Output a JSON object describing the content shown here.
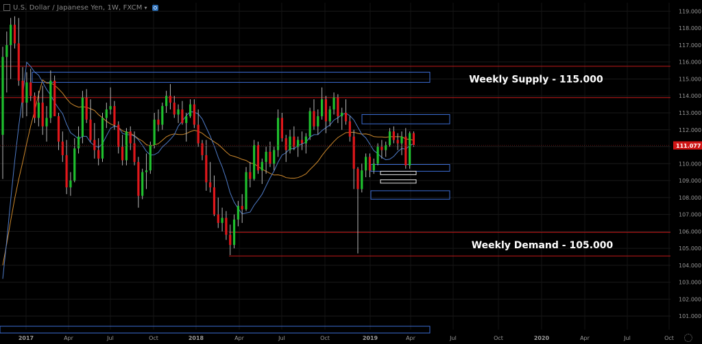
{
  "header": {
    "title": "U.S. Dollar / Japanese Yen, 1W, FXCM"
  },
  "chart_data": {
    "type": "candlestick",
    "symbol": "USDJPY",
    "timeframe": "1W",
    "ylim": [
      100.2,
      119.5
    ],
    "y_ticks": [
      "119.000",
      "118.000",
      "117.000",
      "116.000",
      "115.000",
      "114.000",
      "113.000",
      "112.000",
      "111.000",
      "110.000",
      "109.000",
      "108.000",
      "107.000",
      "106.000",
      "105.000",
      "104.000",
      "103.000",
      "102.000",
      "101.000"
    ],
    "x_ticks": [
      "2017",
      "Apr",
      "Jul",
      "Oct",
      "2018",
      "Apr",
      "Jul",
      "Oct",
      "2019",
      "Apr",
      "Jul",
      "Oct",
      "2020",
      "Apr",
      "Jul",
      "Oct"
    ],
    "last_price": "111.077",
    "colors": {
      "up": "#1fc02e",
      "down": "#e0171b",
      "blue_ma": "#4f7cc9",
      "orange_ma": "#d08a2c",
      "zone_border": "#3d6ed6",
      "level_line": "#c41a1a",
      "last_price_bg": "#d01515",
      "axis_text": "#9a9a9a",
      "annotation_text": "#ffffff"
    },
    "ohlc": [
      [
        111.7,
        116.9,
        109.1,
        116.3
      ],
      [
        116.3,
        117.8,
        114.2,
        117.0
      ],
      [
        117.0,
        118.6,
        115.0,
        118.2
      ],
      [
        118.2,
        118.7,
        116.8,
        117.1
      ],
      [
        117.1,
        118.6,
        114.6,
        114.9
      ],
      [
        114.9,
        115.7,
        112.7,
        113.6
      ],
      [
        113.6,
        115.4,
        112.8,
        114.8
      ],
      [
        114.8,
        115.6,
        113.7,
        114.0
      ],
      [
        114.0,
        114.2,
        112.4,
        112.7
      ],
      [
        112.7,
        114.3,
        112.2,
        113.6
      ],
      [
        113.6,
        114.6,
        111.7,
        112.2
      ],
      [
        112.2,
        113.4,
        111.3,
        112.7
      ],
      [
        112.7,
        115.5,
        112.4,
        114.9
      ],
      [
        114.9,
        115.2,
        112.8,
        112.8
      ],
      [
        112.8,
        113.0,
        110.8,
        111.3
      ],
      [
        111.3,
        111.9,
        110.1,
        110.5
      ],
      [
        110.5,
        111.4,
        108.2,
        108.6
      ],
      [
        108.6,
        109.5,
        108.1,
        109.0
      ],
      [
        109.0,
        111.5,
        108.9,
        110.9
      ],
      [
        110.9,
        112.2,
        110.6,
        111.6
      ],
      [
        111.6,
        114.3,
        111.2,
        113.9
      ],
      [
        113.9,
        114.4,
        112.4,
        112.6
      ],
      [
        112.6,
        113.8,
        111.3,
        111.4
      ],
      [
        111.4,
        112.4,
        110.3,
        110.8
      ],
      [
        110.8,
        111.5,
        109.9,
        110.3
      ],
      [
        110.3,
        113.0,
        110.1,
        112.7
      ],
      [
        112.7,
        113.6,
        112.1,
        113.2
      ],
      [
        113.2,
        114.5,
        112.9,
        113.4
      ],
      [
        113.4,
        113.7,
        112.0,
        112.3
      ],
      [
        112.3,
        112.5,
        110.6,
        111.0
      ],
      [
        111.0,
        111.7,
        109.9,
        110.2
      ],
      [
        110.2,
        112.1,
        109.9,
        111.9
      ],
      [
        111.9,
        112.2,
        110.8,
        111.2
      ],
      [
        111.2,
        111.9,
        109.9,
        110.1
      ],
      [
        110.1,
        110.4,
        107.4,
        108.1
      ],
      [
        108.1,
        109.7,
        107.9,
        109.5
      ],
      [
        109.5,
        110.6,
        108.5,
        109.6
      ],
      [
        109.6,
        111.3,
        109.4,
        111.1
      ],
      [
        111.1,
        113.0,
        110.9,
        112.6
      ],
      [
        112.6,
        113.2,
        111.9,
        112.3
      ],
      [
        112.3,
        113.6,
        112.0,
        113.4
      ],
      [
        113.4,
        114.3,
        113.0,
        114.0
      ],
      [
        114.0,
        114.7,
        113.2,
        113.6
      ],
      [
        113.6,
        114.0,
        112.7,
        112.9
      ],
      [
        112.9,
        113.5,
        112.4,
        113.2
      ],
      [
        113.2,
        113.7,
        112.3,
        112.4
      ],
      [
        112.4,
        113.0,
        111.3,
        112.8
      ],
      [
        112.8,
        113.8,
        112.7,
        113.5
      ],
      [
        113.5,
        113.8,
        112.1,
        112.3
      ],
      [
        112.3,
        113.2,
        111.0,
        111.2
      ],
      [
        111.2,
        111.4,
        110.2,
        110.5
      ],
      [
        110.5,
        111.4,
        108.4,
        108.9
      ],
      [
        108.9,
        110.1,
        108.3,
        108.6
      ],
      [
        108.6,
        109.3,
        106.9,
        107.0
      ],
      [
        107.0,
        108.0,
        106.2,
        106.5
      ],
      [
        106.5,
        107.4,
        106.0,
        106.8
      ],
      [
        106.8,
        107.2,
        105.5,
        105.8
      ],
      [
        105.8,
        106.4,
        104.6,
        105.2
      ],
      [
        105.2,
        107.0,
        105.0,
        106.7
      ],
      [
        106.7,
        107.8,
        106.3,
        107.5
      ],
      [
        107.5,
        108.2,
        106.5,
        107.3
      ],
      [
        107.3,
        109.8,
        107.2,
        109.5
      ],
      [
        109.5,
        110.1,
        108.6,
        109.1
      ],
      [
        109.1,
        111.4,
        109.0,
        111.1
      ],
      [
        111.1,
        111.3,
        109.4,
        109.6
      ],
      [
        109.6,
        110.3,
        108.8,
        110.1
      ],
      [
        110.1,
        111.0,
        109.4,
        110.7
      ],
      [
        110.7,
        111.3,
        109.8,
        110.0
      ],
      [
        110.0,
        111.0,
        109.6,
        110.8
      ],
      [
        110.8,
        113.2,
        110.4,
        112.7
      ],
      [
        112.7,
        113.0,
        111.3,
        111.5
      ],
      [
        111.5,
        111.7,
        110.1,
        110.8
      ],
      [
        110.8,
        112.0,
        110.6,
        111.6
      ],
      [
        111.6,
        112.2,
        110.8,
        111.0
      ],
      [
        111.0,
        111.6,
        110.4,
        111.4
      ],
      [
        111.4,
        111.9,
        110.8,
        111.2
      ],
      [
        111.2,
        111.8,
        110.6,
        111.6
      ],
      [
        111.6,
        113.3,
        111.4,
        113.1
      ],
      [
        113.1,
        113.8,
        112.0,
        112.2
      ],
      [
        112.2,
        113.2,
        111.7,
        112.8
      ],
      [
        112.8,
        114.5,
        112.6,
        113.8
      ],
      [
        113.8,
        114.0,
        111.8,
        112.5
      ],
      [
        112.5,
        113.4,
        112.2,
        113.2
      ],
      [
        113.2,
        114.2,
        112.9,
        113.9
      ],
      [
        113.9,
        114.1,
        112.4,
        112.8
      ],
      [
        112.8,
        113.3,
        112.0,
        113.0
      ],
      [
        113.0,
        113.8,
        112.3,
        112.5
      ],
      [
        112.5,
        112.8,
        111.3,
        111.6
      ],
      [
        111.6,
        112.0,
        108.5,
        109.7
      ],
      [
        109.7,
        109.8,
        104.7,
        108.5
      ],
      [
        108.5,
        110.0,
        108.3,
        109.6
      ],
      [
        109.6,
        110.6,
        109.2,
        110.4
      ],
      [
        110.4,
        110.6,
        109.2,
        109.6
      ],
      [
        109.6,
        110.3,
        109.4,
        110.0
      ],
      [
        110.0,
        111.2,
        109.9,
        111.0
      ],
      [
        111.0,
        111.4,
        110.3,
        110.8
      ],
      [
        110.8,
        111.3,
        110.4,
        111.1
      ],
      [
        111.1,
        112.1,
        111.0,
        111.9
      ],
      [
        111.9,
        112.2,
        111.2,
        111.4
      ],
      [
        111.4,
        111.8,
        110.8,
        111.2
      ],
      [
        111.2,
        111.9,
        110.5,
        111.6
      ],
      [
        111.6,
        112.1,
        109.7,
        109.9
      ],
      [
        109.9,
        111.9,
        109.7,
        111.8
      ],
      [
        111.8,
        111.9,
        111.0,
        111.1
      ]
    ],
    "zones": [
      {
        "kind": "supply",
        "label": "Weekly Supply - 115.000",
        "y": [
          114.8,
          115.4
        ],
        "x_start": "2017"
      },
      {
        "kind": "zone",
        "y": [
          112.35,
          112.9
        ],
        "x_start": "Oct"
      },
      {
        "kind": "zone",
        "y": [
          109.55,
          109.95
        ],
        "x_start": "2019"
      },
      {
        "kind": "zone",
        "y": [
          107.9,
          108.4
        ],
        "x_start": "2019"
      },
      {
        "kind": "zone",
        "y": [
          100.0,
          100.4
        ],
        "x_start": "2017"
      }
    ],
    "small_boxes": [
      {
        "y": [
          109.35,
          109.55
        ]
      },
      {
        "y": [
          108.85,
          109.05
        ]
      }
    ],
    "levels": [
      {
        "y": 115.75
      },
      {
        "y": 113.9
      },
      {
        "y": 105.95
      },
      {
        "y": 104.55
      }
    ],
    "annotations": [
      {
        "text": "Weekly Supply - 115.000",
        "y": 115.0
      },
      {
        "text": "Weekly Demand - 105.000",
        "y": 105.2
      }
    ]
  }
}
